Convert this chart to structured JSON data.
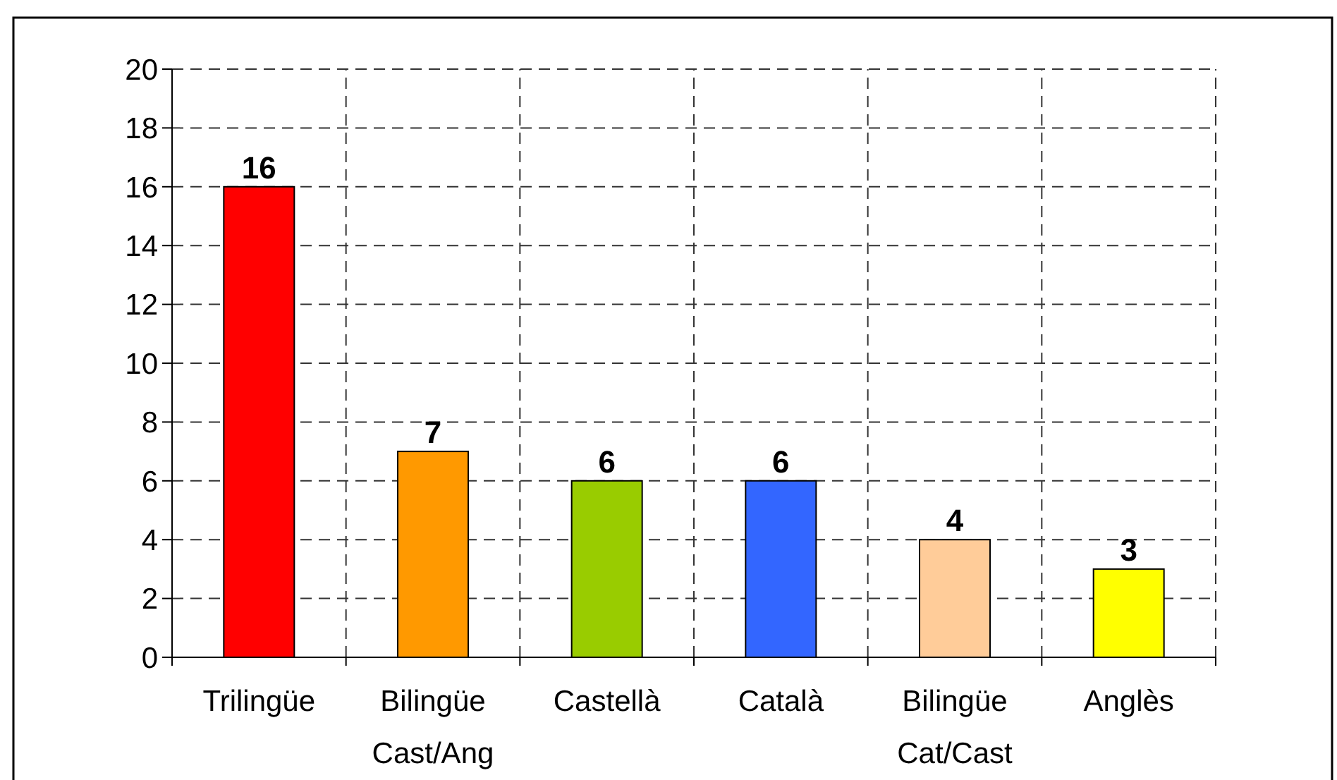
{
  "chart_data": {
    "type": "bar",
    "categories": [
      "Trilingüe",
      "Bilingüe Cast/Ang",
      "Castellà",
      "Català",
      "Bilingüe Cat/Cast",
      "Anglès"
    ],
    "values": [
      16,
      7,
      6,
      6,
      4,
      3
    ],
    "colors": [
      "#ff0000",
      "#ff9900",
      "#99cc00",
      "#3366ff",
      "#ffcc99",
      "#ffff00"
    ],
    "ylim": [
      0,
      20
    ],
    "yticks": [
      0,
      2,
      4,
      6,
      8,
      10,
      12,
      14,
      16,
      18,
      20
    ],
    "grid": true,
    "data_labels": true
  }
}
